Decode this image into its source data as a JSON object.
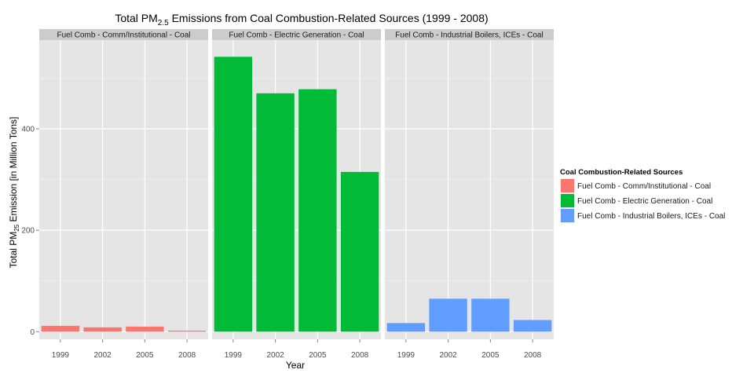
{
  "chart_data": {
    "type": "bar",
    "title": {
      "prefix": "Total PM",
      "sub": "2.5",
      "suffix": " Emissions from Coal Combustion-Related Sources (1999 - 2008)"
    },
    "xlabel": "Year",
    "ylabel": {
      "prefix": "Total PM",
      "sub": "25",
      "suffix": " Emission [in Million Tons]"
    },
    "categories": [
      "1999",
      "2002",
      "2005",
      "2008"
    ],
    "yticks": [
      0,
      200,
      400
    ],
    "ylim": [
      -15,
      575
    ],
    "grid": true,
    "legend": {
      "title": "Coal Combustion-Related Sources",
      "placement": "right"
    },
    "series": [
      {
        "name": "Fuel Comb - Comm/Institutional - Coal",
        "color": "#F8766D",
        "values": [
          11.5,
          8.5,
          10,
          2
        ]
      },
      {
        "name": "Fuel Comb - Electric Generation - Coal",
        "color": "#00BA38",
        "values": [
          542,
          470,
          478,
          315
        ]
      },
      {
        "name": "Fuel Comb - Industrial Boilers, ICEs - Coal",
        "color": "#619CFF",
        "values": [
          17,
          65,
          65,
          23
        ]
      }
    ]
  }
}
